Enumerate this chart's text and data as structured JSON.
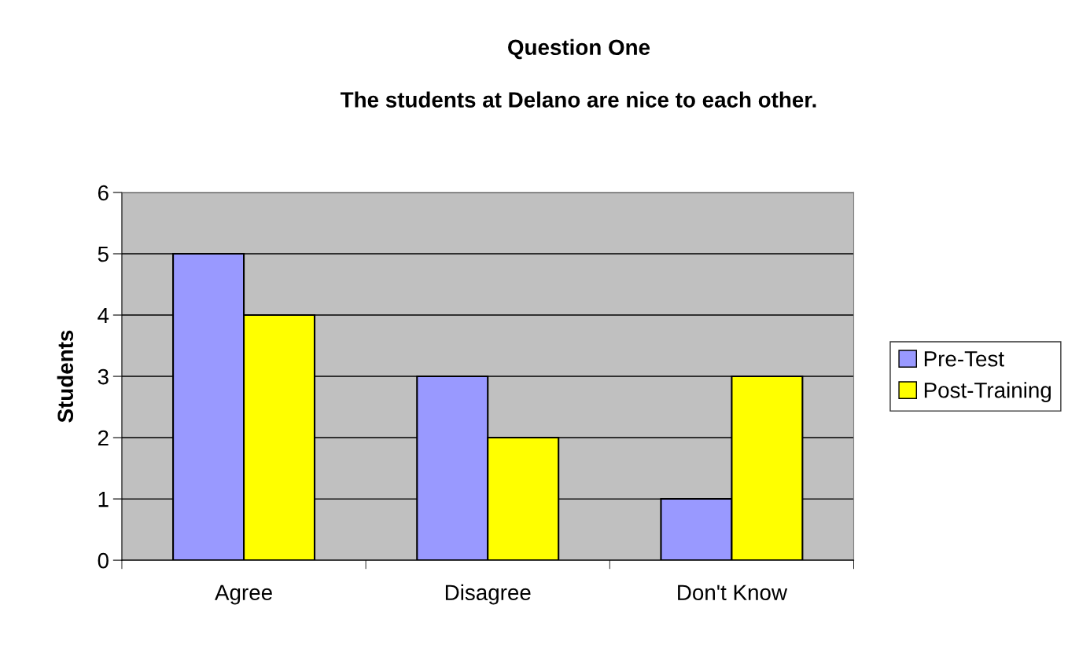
{
  "chart_data": {
    "type": "bar",
    "title": "Question One",
    "subtitle": "The students at Delano are nice to each other.",
    "ylabel": "Students",
    "categories": [
      "Agree",
      "Disagree",
      "Don't Know"
    ],
    "series": [
      {
        "name": "Pre-Test",
        "color": "#9999ff",
        "values": [
          5,
          3,
          1
        ]
      },
      {
        "name": "Post-Training",
        "color": "#ffff00",
        "values": [
          4,
          2,
          3
        ]
      }
    ],
    "ylim": [
      0,
      6
    ],
    "yticks": [
      0,
      1,
      2,
      3,
      4,
      5,
      6
    ],
    "grid": "y",
    "legend": "right"
  }
}
